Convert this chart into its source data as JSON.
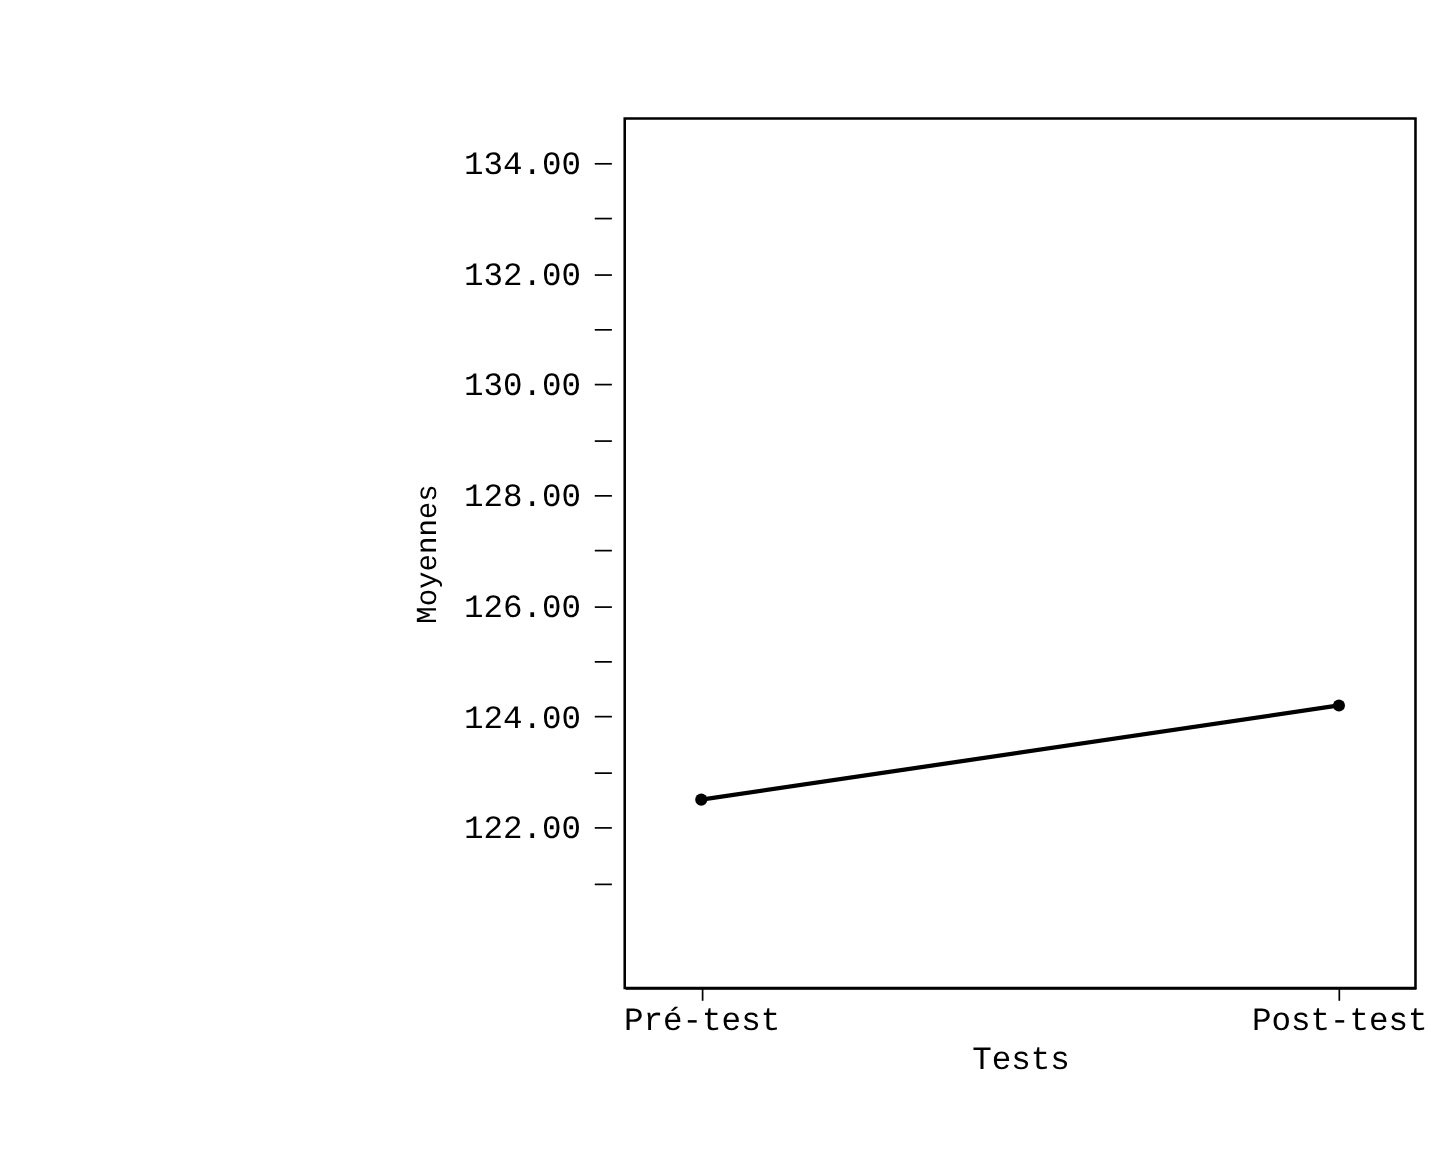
{
  "chart_data": {
    "type": "line",
    "xlabel": "Tests",
    "ylabel": "Moyennes",
    "categories": [
      "Pré-test",
      "Post-test"
    ],
    "series": [
      {
        "color": "#000000",
        "values": [
          122.5,
          124.2
        ]
      }
    ],
    "ylim": [
      119.1,
      134.8
    ],
    "yticks": [
      {
        "value": 121,
        "label": null
      },
      {
        "value": 122,
        "label": "122.00"
      },
      {
        "value": 123,
        "label": null
      },
      {
        "value": 124,
        "label": "124.00"
      },
      {
        "value": 125,
        "label": null
      },
      {
        "value": 126,
        "label": "126.00"
      },
      {
        "value": 127,
        "label": null
      },
      {
        "value": 128,
        "label": "128.00"
      },
      {
        "value": 129,
        "label": null
      },
      {
        "value": 130,
        "label": "130.00"
      },
      {
        "value": 131,
        "label": null
      },
      {
        "value": 132,
        "label": "132.00"
      },
      {
        "value": 133,
        "label": null
      },
      {
        "value": 134,
        "label": "134.00"
      }
    ],
    "marker": "circle",
    "line_style": "solid",
    "grid": false
  }
}
